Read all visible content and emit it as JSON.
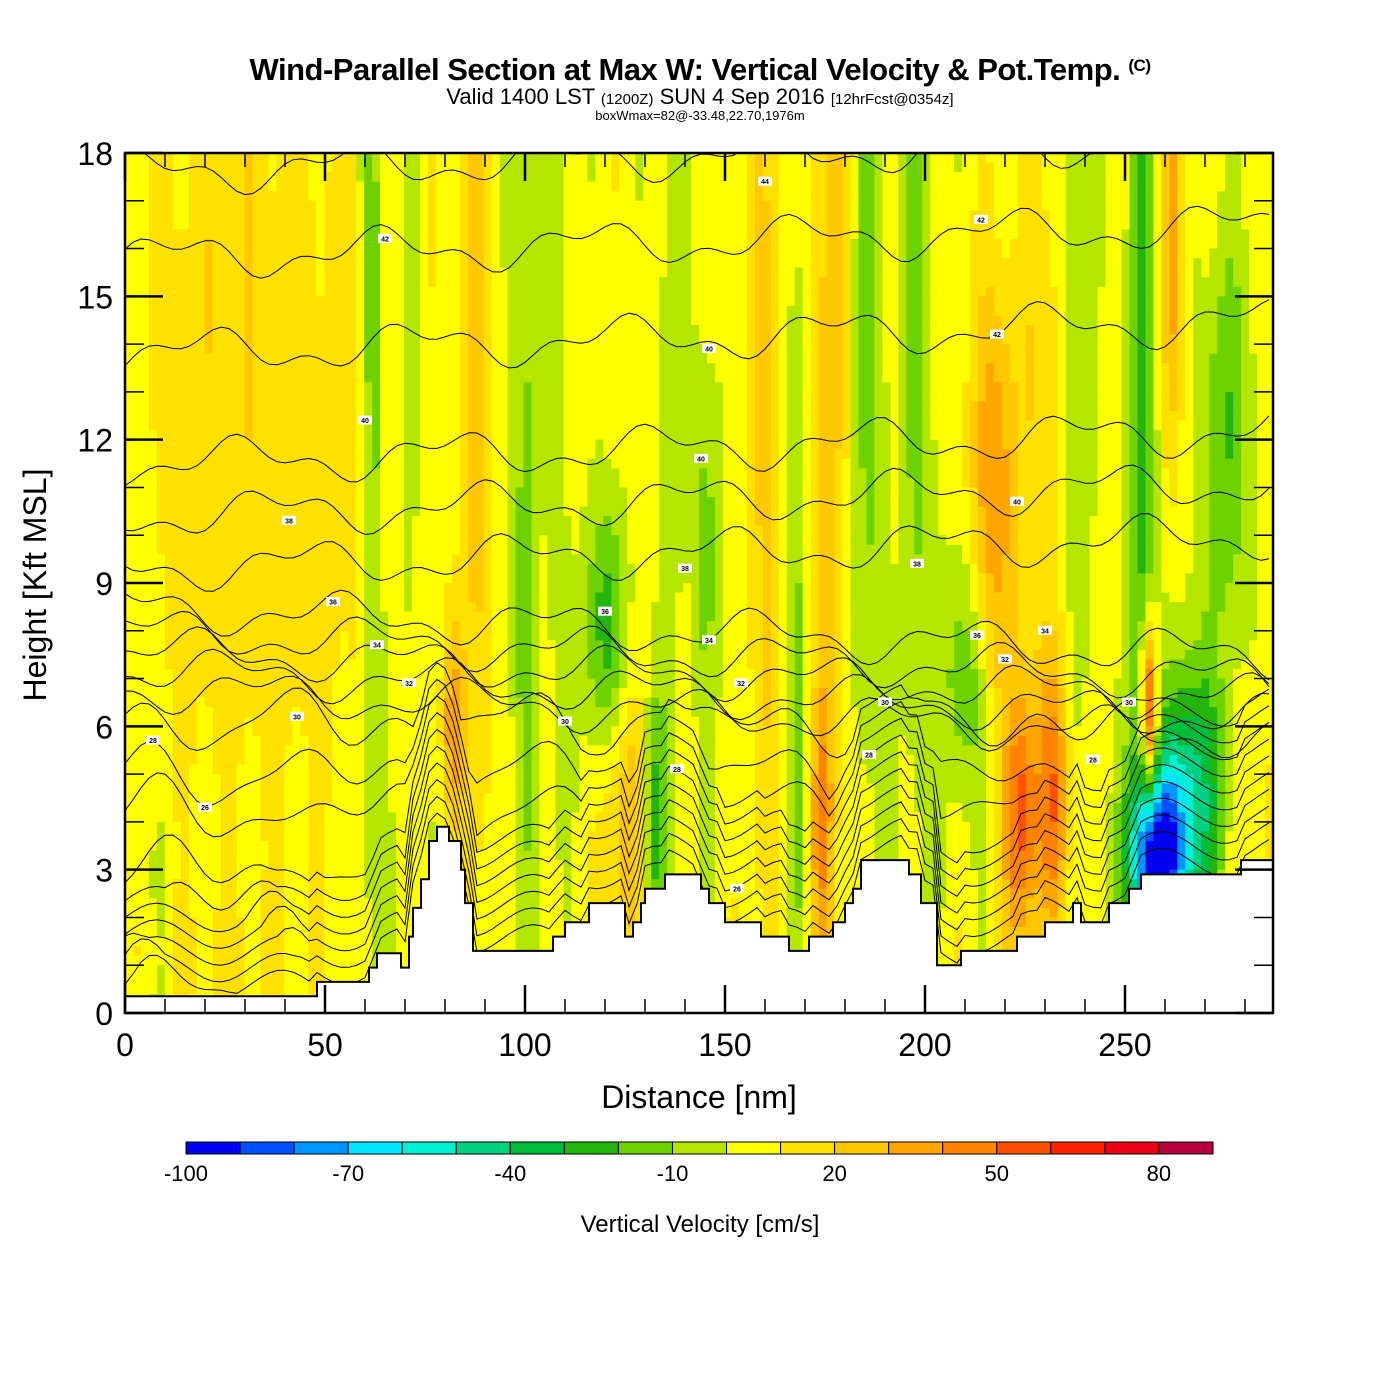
{
  "header": {
    "title": "Wind-Parallel Section at Max W: Vertical Velocity & Pot.Temp.",
    "copyright_mark": "(C)",
    "valid_prefix": "Valid 1400 LST",
    "valid_utc": "(1200Z)",
    "valid_date": "SUN 4 Sep 2016",
    "forecast": "[12hrFcst@0354z]",
    "box_info": "boxWmax=82@-33.48,22.70,1976m"
  },
  "chart_data": {
    "type": "heatmap",
    "title": "Wind-Parallel Section at Max W: Vertical Velocity & Pot.Temp.",
    "xlabel": "Distance [nm]",
    "ylabel": "Height [Kft MSL]",
    "xlim": [
      0,
      287
    ],
    "ylim": [
      0,
      18
    ],
    "x_ticks": [
      "0",
      "50",
      "100",
      "150",
      "200",
      "250"
    ],
    "x_tick_values": [
      0,
      50,
      100,
      150,
      200,
      250
    ],
    "x_minor_step": 10,
    "y_ticks": [
      "0",
      "3",
      "6",
      "9",
      "12",
      "15",
      "18"
    ],
    "y_tick_values": [
      0,
      3,
      6,
      9,
      12,
      15,
      18
    ],
    "y_minor_step": 1,
    "colorbar": {
      "title": "Vertical Velocity [cm/s]",
      "levels": [
        -100,
        -90,
        -80,
        -70,
        -60,
        -50,
        -40,
        -30,
        -20,
        -10,
        0,
        10,
        20,
        30,
        40,
        50,
        60,
        70,
        80,
        90
      ],
      "labels": [
        "-100",
        "-70",
        "-40",
        "-10",
        "20",
        "50",
        "80"
      ],
      "label_values": [
        -100,
        -70,
        -40,
        -10,
        20,
        50,
        80
      ],
      "colors": [
        "#0000f0",
        "#0050ff",
        "#0096ff",
        "#00e6ff",
        "#00f0d2",
        "#00d282",
        "#00be3c",
        "#22b50e",
        "#6ed200",
        "#b4e600",
        "#ffff00",
        "#ffe100",
        "#ffc800",
        "#ffa500",
        "#ff8200",
        "#ff5000",
        "#ff2000",
        "#ec0014",
        "#b4003c"
      ],
      "placement": "bottom"
    },
    "field_background": 5,
    "field_features": [
      {
        "x": 20,
        "y": 12,
        "sx": 18,
        "sy": 8,
        "w": 10
      },
      {
        "x": 45,
        "y": 8,
        "sx": 18,
        "sy": 10,
        "w": 8
      },
      {
        "x": 5,
        "y": 12,
        "sx": 4,
        "sy": 20,
        "w": -5
      },
      {
        "x": 2,
        "y": 3,
        "sx": 6,
        "sy": 3,
        "w": 4
      },
      {
        "x": 30,
        "y": 2.5,
        "sx": 30,
        "sy": 3,
        "w": -8
      },
      {
        "x": 25,
        "y": 1.2,
        "sx": 12,
        "sy": 1,
        "w": 8
      },
      {
        "x": 62,
        "y": 13,
        "sx": 2,
        "sy": 10,
        "w": -22
      },
      {
        "x": 71,
        "y": 14,
        "sx": 2,
        "sy": 8,
        "w": -12
      },
      {
        "x": 88,
        "y": 14,
        "sx": 2.5,
        "sy": 10,
        "w": 20
      },
      {
        "x": 82,
        "y": 6,
        "sx": 2,
        "sy": 1.5,
        "w": 30
      },
      {
        "x": 100,
        "y": 12,
        "sx": 2.5,
        "sy": 8,
        "w": -18
      },
      {
        "x": 120,
        "y": 8,
        "sx": 4,
        "sy": 2,
        "w": -30
      },
      {
        "x": 108,
        "y": 13,
        "sx": 2,
        "sy": 8,
        "w": -10
      },
      {
        "x": 125,
        "y": 4,
        "sx": 4,
        "sy": 2,
        "w": 25
      },
      {
        "x": 132,
        "y": 4,
        "sx": 2,
        "sy": 2,
        "w": -30
      },
      {
        "x": 136,
        "y": 14,
        "sx": 2,
        "sy": 8,
        "w": -12
      },
      {
        "x": 145,
        "y": 10,
        "sx": 3,
        "sy": 3,
        "w": -18
      },
      {
        "x": 160,
        "y": 13,
        "sx": 3,
        "sy": 10,
        "w": 18
      },
      {
        "x": 168,
        "y": 9,
        "sx": 2,
        "sy": 8,
        "w": -15
      },
      {
        "x": 176,
        "y": 15,
        "sx": 3,
        "sy": 8,
        "w": 22
      },
      {
        "x": 174,
        "y": 4,
        "sx": 2,
        "sy": 2,
        "w": 30
      },
      {
        "x": 186,
        "y": 14,
        "sx": 3,
        "sy": 8,
        "w": -18
      },
      {
        "x": 198,
        "y": 14,
        "sx": 3,
        "sy": 8,
        "w": -18
      },
      {
        "x": 210,
        "y": 7,
        "sx": 4,
        "sy": 2,
        "w": -25
      },
      {
        "x": 217,
        "y": 11,
        "sx": 4,
        "sy": 3,
        "w": 35
      },
      {
        "x": 224,
        "y": 4,
        "sx": 3,
        "sy": 2,
        "w": 50
      },
      {
        "x": 232,
        "y": 4.5,
        "sx": 3,
        "sy": 2,
        "w": 40
      },
      {
        "x": 238,
        "y": 15,
        "sx": 3,
        "sy": 6,
        "w": -20
      },
      {
        "x": 230,
        "y": 13,
        "sx": 5,
        "sy": 4,
        "w": 15
      },
      {
        "x": 254,
        "y": 12,
        "sx": 2.5,
        "sy": 8,
        "w": -30
      },
      {
        "x": 256,
        "y": 6.3,
        "sx": 1.5,
        "sy": 1.3,
        "w": 70
      },
      {
        "x": 262,
        "y": 16,
        "sx": 2,
        "sy": 3,
        "w": 30
      },
      {
        "x": 258,
        "y": 3.2,
        "sx": 5,
        "sy": 1.3,
        "w": -90
      },
      {
        "x": 266,
        "y": 4.5,
        "sx": 6,
        "sy": 2,
        "w": -50
      },
      {
        "x": 275,
        "y": 12,
        "sx": 5,
        "sy": 3,
        "w": -25
      },
      {
        "x": 283,
        "y": 4,
        "sx": 6,
        "sy": 2,
        "w": 6
      }
    ],
    "terrain": [
      [
        0,
        0.35
      ],
      [
        48,
        0.35
      ],
      [
        48,
        0.65
      ],
      [
        61,
        0.65
      ],
      [
        61,
        0.95
      ],
      [
        63,
        0.95
      ],
      [
        63,
        1.25
      ],
      [
        69,
        1.25
      ],
      [
        69,
        0.95
      ],
      [
        71,
        0.95
      ],
      [
        71,
        1.6
      ],
      [
        72,
        1.6
      ],
      [
        72,
        2.2
      ],
      [
        74,
        2.2
      ],
      [
        74,
        2.8
      ],
      [
        76,
        2.8
      ],
      [
        76,
        3.6
      ],
      [
        78,
        3.6
      ],
      [
        78,
        3.9
      ],
      [
        81,
        3.9
      ],
      [
        81,
        3.6
      ],
      [
        84,
        3.6
      ],
      [
        84,
        3.0
      ],
      [
        85,
        3.0
      ],
      [
        85,
        2.3
      ],
      [
        87,
        2.3
      ],
      [
        87,
        1.3
      ],
      [
        107,
        1.3
      ],
      [
        107,
        1.6
      ],
      [
        110,
        1.6
      ],
      [
        110,
        1.9
      ],
      [
        116,
        1.9
      ],
      [
        116,
        2.3
      ],
      [
        125,
        2.3
      ],
      [
        125,
        1.6
      ],
      [
        127,
        1.6
      ],
      [
        127,
        1.9
      ],
      [
        129,
        1.9
      ],
      [
        129,
        2.3
      ],
      [
        130,
        2.3
      ],
      [
        130,
        2.6
      ],
      [
        135,
        2.6
      ],
      [
        135,
        2.9
      ],
      [
        144,
        2.9
      ],
      [
        144,
        2.6
      ],
      [
        146,
        2.6
      ],
      [
        146,
        2.3
      ],
      [
        150,
        2.3
      ],
      [
        150,
        1.9
      ],
      [
        159,
        1.9
      ],
      [
        159,
        1.6
      ],
      [
        166,
        1.6
      ],
      [
        166,
        1.3
      ],
      [
        171,
        1.3
      ],
      [
        171,
        1.6
      ],
      [
        177,
        1.6
      ],
      [
        177,
        1.9
      ],
      [
        180,
        1.9
      ],
      [
        180,
        2.3
      ],
      [
        182,
        2.3
      ],
      [
        182,
        2.6
      ],
      [
        184,
        2.6
      ],
      [
        184,
        3.2
      ],
      [
        196,
        3.2
      ],
      [
        196,
        2.9
      ],
      [
        199,
        2.9
      ],
      [
        199,
        2.3
      ],
      [
        203,
        2.3
      ],
      [
        203,
        1.6
      ],
      [
        203,
        1.0
      ],
      [
        209,
        1.0
      ],
      [
        209,
        1.3
      ],
      [
        223,
        1.3
      ],
      [
        223,
        1.6
      ],
      [
        230,
        1.6
      ],
      [
        230,
        1.9
      ],
      [
        237,
        1.9
      ],
      [
        237,
        2.3
      ],
      [
        239,
        2.3
      ],
      [
        239,
        1.9
      ],
      [
        246,
        1.9
      ],
      [
        246,
        2.3
      ],
      [
        251,
        2.3
      ],
      [
        251,
        2.6
      ],
      [
        254,
        2.6
      ],
      [
        254,
        2.9
      ],
      [
        279,
        2.9
      ],
      [
        279,
        3.2
      ],
      [
        287,
        3.2
      ]
    ],
    "contours": {
      "variable": "Potential Temperature",
      "levels_far_left": [
        24,
        25,
        26,
        27,
        28,
        29,
        30,
        31,
        32,
        33,
        34,
        35,
        36,
        37,
        38,
        39,
        40,
        41,
        42,
        43,
        44
      ],
      "heights_far_left": [
        0.5,
        0.8,
        1.1,
        1.4,
        1.8,
        2.3,
        3.0,
        4.2,
        5.0,
        6.1,
        6.8,
        7.2,
        7.6,
        8.0,
        8.5,
        9.3,
        10.4,
        11.5,
        13.8,
        15.8,
        17.6
      ],
      "labels": [
        {
          "text": "42",
          "x": 65,
          "y": 16.2
        },
        {
          "text": "44",
          "x": 160,
          "y": 17.4
        },
        {
          "text": "42",
          "x": 214,
          "y": 16.6
        },
        {
          "text": "40",
          "x": 146,
          "y": 13.9
        },
        {
          "text": "42",
          "x": 218,
          "y": 14.2
        },
        {
          "text": "40",
          "x": 60,
          "y": 12.4
        },
        {
          "text": "40",
          "x": 144,
          "y": 11.6
        },
        {
          "text": "40",
          "x": 223,
          "y": 10.7
        },
        {
          "text": "38",
          "x": 41,
          "y": 10.3
        },
        {
          "text": "38",
          "x": 140,
          "y": 9.3
        },
        {
          "text": "38",
          "x": 198,
          "y": 9.4
        },
        {
          "text": "36",
          "x": 52,
          "y": 8.6
        },
        {
          "text": "36",
          "x": 120,
          "y": 8.4
        },
        {
          "text": "36",
          "x": 213,
          "y": 7.9
        },
        {
          "text": "34",
          "x": 63,
          "y": 7.7
        },
        {
          "text": "34",
          "x": 146,
          "y": 7.8
        },
        {
          "text": "34",
          "x": 230,
          "y": 8.0
        },
        {
          "text": "32",
          "x": 71,
          "y": 6.9
        },
        {
          "text": "32",
          "x": 154,
          "y": 6.9
        },
        {
          "text": "32",
          "x": 220,
          "y": 7.4
        },
        {
          "text": "30",
          "x": 43,
          "y": 6.2
        },
        {
          "text": "30",
          "x": 110,
          "y": 6.1
        },
        {
          "text": "30",
          "x": 190,
          "y": 6.5
        },
        {
          "text": "30",
          "x": 251,
          "y": 6.5
        },
        {
          "text": "28",
          "x": 7,
          "y": 5.7
        },
        {
          "text": "28",
          "x": 138,
          "y": 5.1
        },
        {
          "text": "28",
          "x": 186,
          "y": 5.4
        },
        {
          "text": "28",
          "x": 242,
          "y": 5.3
        },
        {
          "text": "26",
          "x": 20,
          "y": 4.3
        },
        {
          "text": "26",
          "x": 153,
          "y": 2.6
        }
      ]
    }
  }
}
